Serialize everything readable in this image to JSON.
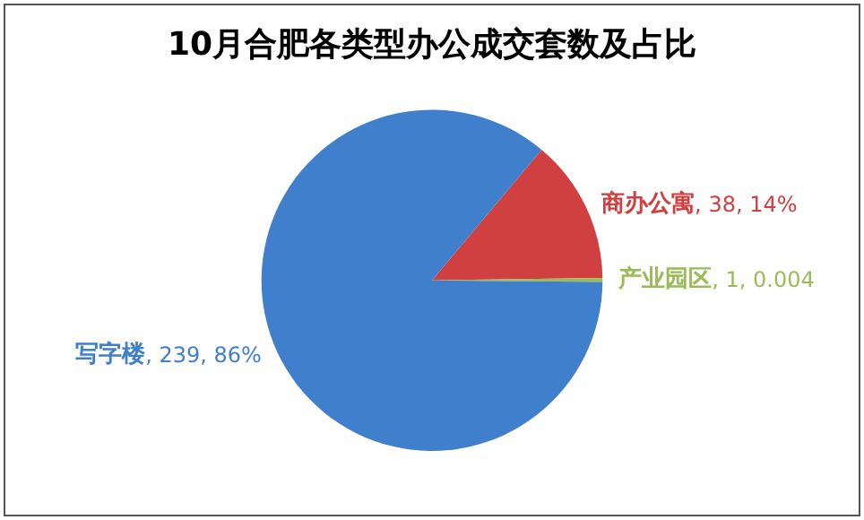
{
  "chart_data": {
    "type": "pie",
    "title": "10月合肥各类型办公成交套数及占比",
    "categories": [
      "商办公寓",
      "产业园区",
      "写字楼"
    ],
    "values": [
      38,
      1,
      239
    ],
    "colors": [
      "#d04040",
      "#9bbb59",
      "#3f7fcc"
    ],
    "value_labels": [
      ", 38, 14%",
      ", 1, 0.004",
      ", 239, 86%"
    ],
    "legend": false
  }
}
